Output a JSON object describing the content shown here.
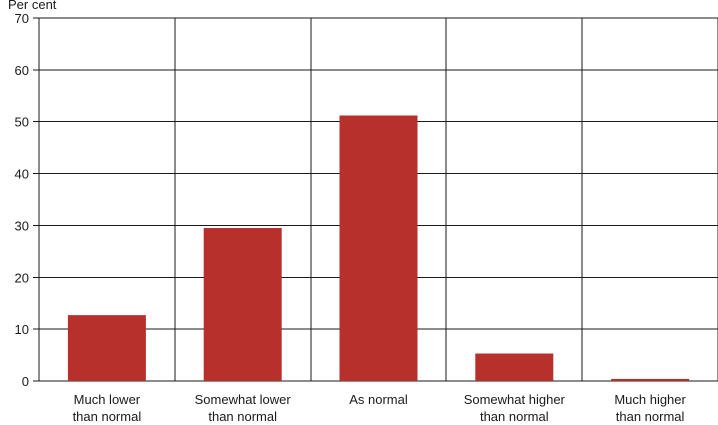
{
  "chart_data": {
    "type": "bar",
    "ylabel": "Per cent",
    "categories": [
      [
        "Much lower",
        "than normal"
      ],
      [
        "Somewhat lower",
        "than normal"
      ],
      [
        "As normal"
      ],
      [
        "Somewhat higher",
        "than normal"
      ],
      [
        "Much higher",
        "than normal"
      ]
    ],
    "values": [
      12.7,
      29.5,
      51.2,
      5.3,
      0.4
    ],
    "ylim": [
      0,
      70
    ],
    "yticks": [
      0,
      10,
      20,
      30,
      40,
      50,
      60,
      70
    ],
    "grid": true,
    "bar_color": "#b8302c"
  }
}
